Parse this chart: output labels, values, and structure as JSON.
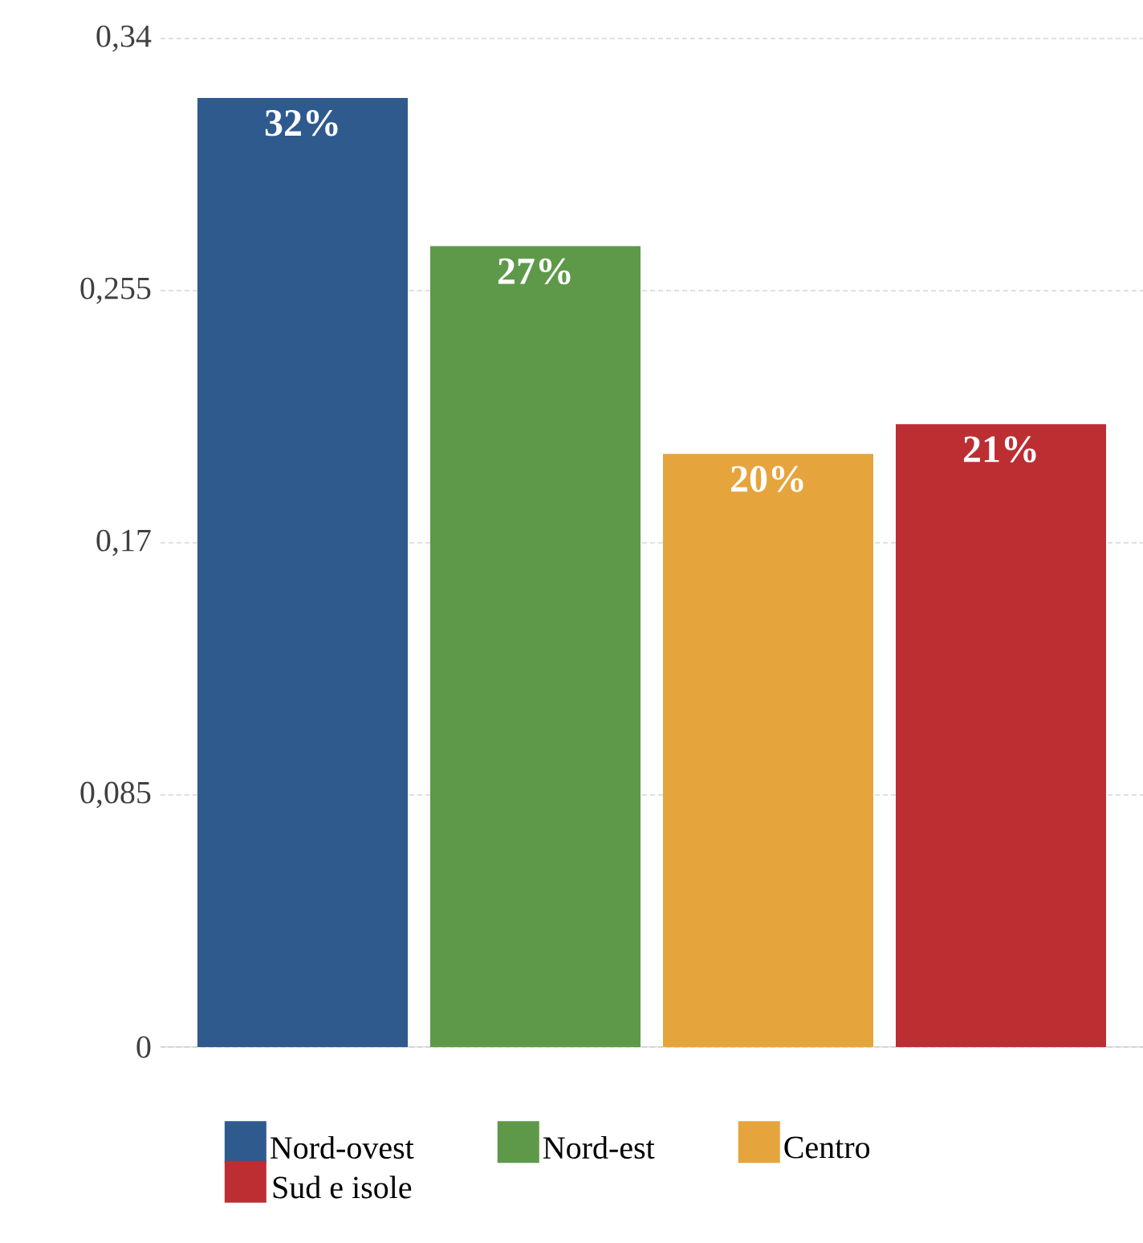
{
  "chart_data": {
    "type": "bar",
    "categories": [
      null
    ],
    "series": [
      {
        "name": "Nord-ovest",
        "color": "#2e5a8e",
        "values": [
          0.32
        ],
        "value_labels": [
          "32%"
        ]
      },
      {
        "name": "Nord-est",
        "color": "#5e994a",
        "values": [
          0.27
        ],
        "value_labels": [
          "27%"
        ]
      },
      {
        "name": "Centro",
        "color": "#e6a43c",
        "values": [
          0.2
        ],
        "value_labels": [
          "20%"
        ]
      },
      {
        "name": "Sud e isole",
        "color": "#bd2e33",
        "values": [
          0.21
        ],
        "value_labels": [
          "21%"
        ]
      }
    ],
    "ylim": [
      0,
      0.34
    ],
    "yticks": [
      0,
      {
        "value": 0.085,
        "label": "0,085"
      },
      {
        "value": 0.17,
        "label": "0,17"
      },
      {
        "value": 0.255,
        "label": "0,255"
      },
      {
        "value": 0.34,
        "label": "0,34"
      }
    ],
    "grid": "y",
    "legend": "bottom"
  }
}
